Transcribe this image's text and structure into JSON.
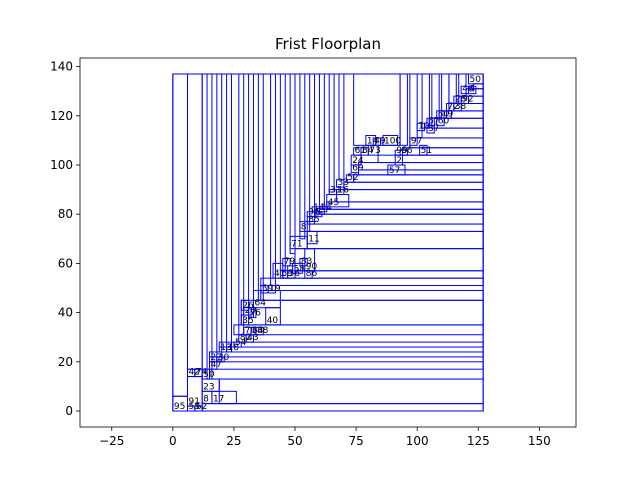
{
  "chart_data": {
    "type": "floorplan",
    "title": "Frist Floorplan",
    "xlim": [
      -38,
      165
    ],
    "ylim": [
      -6.5,
      143.5
    ],
    "xticks": [
      -25,
      0,
      25,
      50,
      75,
      100,
      125,
      150
    ],
    "yticks": [
      0,
      20,
      40,
      60,
      80,
      100,
      120,
      140
    ],
    "grid": false,
    "color": "#0000ff",
    "rooms": [
      {
        "label": "",
        "x": 0,
        "y": 0,
        "w": 127,
        "h": 137
      },
      {
        "label": "95",
        "x": 0,
        "y": 0,
        "w": 6,
        "h": 6
      },
      {
        "label": "",
        "x": 0,
        "y": 6,
        "w": 6,
        "h": 131
      },
      {
        "label": "55",
        "x": 6,
        "y": 0,
        "w": 3,
        "h": 2
      },
      {
        "label": "62",
        "x": 9,
        "y": 0,
        "w": 3,
        "h": 2
      },
      {
        "label": "91",
        "x": 6,
        "y": 2,
        "w": 6,
        "h": 12
      },
      {
        "label": "42",
        "x": 6,
        "y": 14,
        "w": 3,
        "h": 3
      },
      {
        "label": "74",
        "x": 9,
        "y": 14,
        "w": 3,
        "h": 3
      },
      {
        "label": "",
        "x": 6,
        "y": 17,
        "w": 6,
        "h": 120
      },
      {
        "label": "",
        "x": 12,
        "y": 0,
        "w": 115,
        "h": 3
      },
      {
        "label": "8",
        "x": 12,
        "y": 3,
        "w": 4,
        "h": 5
      },
      {
        "label": "17",
        "x": 16,
        "y": 3,
        "w": 10,
        "h": 5
      },
      {
        "label": "23",
        "x": 12,
        "y": 8,
        "w": 7,
        "h": 5
      },
      {
        "label": "",
        "x": 12,
        "y": 13,
        "w": 115,
        "h": 124
      },
      {
        "label": "50",
        "x": 12,
        "y": 13,
        "w": 3,
        "h": 4
      },
      {
        "label": "",
        "x": 19,
        "y": 3,
        "w": 108,
        "h": 10
      },
      {
        "label": "",
        "x": 15,
        "y": 17,
        "w": 112,
        "h": 3
      },
      {
        "label": "47",
        "x": 15,
        "y": 17,
        "w": 3,
        "h": 3
      },
      {
        "label": "27",
        "x": 15,
        "y": 20,
        "w": 3,
        "h": 2
      },
      {
        "label": "30",
        "x": 18,
        "y": 20,
        "w": 3,
        "h": 2
      },
      {
        "label": "",
        "x": 15,
        "y": 22,
        "w": 112,
        "h": 2
      },
      {
        "label": "13",
        "x": 19,
        "y": 24,
        "w": 3,
        "h": 2
      },
      {
        "label": "18",
        "x": 22,
        "y": 24,
        "w": 2,
        "h": 2
      },
      {
        "label": "",
        "x": 19,
        "y": 26,
        "w": 108,
        "h": 2
      },
      {
        "label": "54",
        "x": 25,
        "y": 26,
        "w": 3,
        "h": 2
      },
      {
        "label": "82",
        "x": 27,
        "y": 28,
        "w": 3,
        "h": 3
      },
      {
        "label": "43",
        "x": 30,
        "y": 28,
        "w": 3,
        "h": 3
      },
      {
        "label": "",
        "x": 25,
        "y": 31,
        "w": 102,
        "h": 4
      },
      {
        "label": "70",
        "x": 29,
        "y": 31,
        "w": 3,
        "h": 3
      },
      {
        "label": "64",
        "x": 32,
        "y": 31,
        "w": 2,
        "h": 3
      },
      {
        "label": "88",
        "x": 34,
        "y": 31,
        "w": 3,
        "h": 3
      },
      {
        "label": "",
        "x": 28,
        "y": 35,
        "w": 99,
        "h": 10
      },
      {
        "label": "35",
        "x": 28,
        "y": 35,
        "w": 3,
        "h": 4
      },
      {
        "label": "20",
        "x": 29,
        "y": 39,
        "w": 3,
        "h": 3
      },
      {
        "label": "76",
        "x": 31,
        "y": 38,
        "w": 3,
        "h": 4
      },
      {
        "label": "40",
        "x": 38,
        "y": 35,
        "w": 6,
        "h": 7
      },
      {
        "label": "26",
        "x": 28,
        "y": 41,
        "w": 3,
        "h": 4
      },
      {
        "label": "64",
        "x": 33,
        "y": 42,
        "w": 11,
        "h": 7
      },
      {
        "label": "",
        "x": 36,
        "y": 45,
        "w": 91,
        "h": 4
      },
      {
        "label": "59",
        "x": 36,
        "y": 48,
        "w": 3,
        "h": 3
      },
      {
        "label": "19",
        "x": 39,
        "y": 48,
        "w": 3,
        "h": 3
      },
      {
        "label": "",
        "x": 36,
        "y": 51,
        "w": 91,
        "h": 3
      },
      {
        "label": "41",
        "x": 41,
        "y": 54,
        "w": 4,
        "h": 6
      },
      {
        "label": "69",
        "x": 44,
        "y": 54,
        "w": 3,
        "h": 3
      },
      {
        "label": "56",
        "x": 47,
        "y": 54,
        "w": 3,
        "h": 5
      },
      {
        "label": "86",
        "x": 54,
        "y": 54,
        "w": 3,
        "h": 3
      },
      {
        "label": "58",
        "x": 49,
        "y": 56,
        "w": 4,
        "h": 4
      },
      {
        "label": "79",
        "x": 45,
        "y": 59,
        "w": 3,
        "h": 3
      },
      {
        "label": "83",
        "x": 52,
        "y": 59,
        "w": 3,
        "h": 3
      },
      {
        "label": "",
        "x": 45,
        "y": 54,
        "w": 82,
        "h": 3
      },
      {
        "label": "90",
        "x": 54,
        "y": 57,
        "w": 4,
        "h": 9
      },
      {
        "label": "",
        "x": 50,
        "y": 57,
        "w": 77,
        "h": 9
      },
      {
        "label": "71",
        "x": 48,
        "y": 66,
        "w": 7,
        "h": 5
      },
      {
        "label": "11",
        "x": 55,
        "y": 68,
        "w": 4,
        "h": 5
      },
      {
        "label": "",
        "x": 55,
        "y": 66,
        "w": 72,
        "h": 7
      },
      {
        "label": "8",
        "x": 52,
        "y": 73,
        "w": 4,
        "h": 4
      },
      {
        "label": "",
        "x": 55,
        "y": 73,
        "w": 72,
        "h": 3
      },
      {
        "label": "85",
        "x": 55,
        "y": 76,
        "w": 3,
        "h": 3
      },
      {
        "label": "96",
        "x": 55,
        "y": 79,
        "w": 3,
        "h": 2
      },
      {
        "label": "81",
        "x": 58,
        "y": 79,
        "w": 3,
        "h": 2
      },
      {
        "label": "",
        "x": 58,
        "y": 76,
        "w": 69,
        "h": 4
      },
      {
        "label": "14",
        "x": 57,
        "y": 81,
        "w": 3,
        "h": 2
      },
      {
        "label": "34",
        "x": 60,
        "y": 81,
        "w": 3,
        "h": 2
      },
      {
        "label": "",
        "x": 60,
        "y": 80,
        "w": 67,
        "h": 2
      },
      {
        "label": "45",
        "x": 63,
        "y": 83,
        "w": 9,
        "h": 5
      },
      {
        "label": "",
        "x": 63,
        "y": 82,
        "w": 64,
        "h": 3
      },
      {
        "label": "31",
        "x": 64,
        "y": 88,
        "w": 3,
        "h": 2
      },
      {
        "label": "16",
        "x": 67,
        "y": 88,
        "w": 3,
        "h": 2
      },
      {
        "label": "",
        "x": 67,
        "y": 85,
        "w": 60,
        "h": 5
      },
      {
        "label": "33",
        "x": 67,
        "y": 91,
        "w": 3,
        "h": 3
      },
      {
        "label": "",
        "x": 70,
        "y": 90,
        "w": 57,
        "h": 3
      },
      {
        "label": "52",
        "x": 71,
        "y": 93,
        "w": 3,
        "h": 3
      },
      {
        "label": "",
        "x": 74,
        "y": 93,
        "w": 53,
        "h": 3
      },
      {
        "label": "69",
        "x": 73,
        "y": 97,
        "w": 3,
        "h": 3
      },
      {
        "label": "24",
        "x": 73,
        "y": 100,
        "w": 4,
        "h": 4
      },
      {
        "label": "57",
        "x": 88,
        "y": 96,
        "w": 7,
        "h": 4
      },
      {
        "label": "",
        "x": 76,
        "y": 96,
        "w": 51,
        "h": 2
      },
      {
        "label": "2",
        "x": 91,
        "y": 100,
        "w": 3,
        "h": 4
      },
      {
        "label": "",
        "x": 76,
        "y": 98,
        "w": 51,
        "h": 3
      },
      {
        "label": "61",
        "x": 74,
        "y": 104,
        "w": 3,
        "h": 3
      },
      {
        "label": "84",
        "x": 77,
        "y": 104,
        "w": 3,
        "h": 3
      },
      {
        "label": "73",
        "x": 80,
        "y": 104,
        "w": 4,
        "h": 4
      },
      {
        "label": "",
        "x": 84,
        "y": 101,
        "w": 43,
        "h": 3
      },
      {
        "label": "99",
        "x": 91,
        "y": 104,
        "w": 3,
        "h": 2
      },
      {
        "label": "66",
        "x": 93,
        "y": 104,
        "w": 3,
        "h": 2
      },
      {
        "label": "51",
        "x": 101,
        "y": 104,
        "w": 3,
        "h": 4
      },
      {
        "label": "",
        "x": 94,
        "y": 104,
        "w": 33,
        "h": 3
      },
      {
        "label": "14",
        "x": 79,
        "y": 108,
        "w": 4,
        "h": 4
      },
      {
        "label": "49",
        "x": 82,
        "y": 108,
        "w": 3,
        "h": 3
      },
      {
        "label": "100",
        "x": 86,
        "y": 108,
        "w": 6,
        "h": 4
      },
      {
        "label": "",
        "x": 74,
        "y": 108,
        "w": 19,
        "h": 29
      },
      {
        "label": "97",
        "x": 97,
        "y": 108,
        "w": 3,
        "h": 3
      },
      {
        "label": "",
        "x": 97,
        "y": 107,
        "w": 30,
        "h": 4
      },
      {
        "label": "10",
        "x": 100,
        "y": 114,
        "w": 3,
        "h": 3
      },
      {
        "label": "37",
        "x": 104,
        "y": 113,
        "w": 3,
        "h": 3
      },
      {
        "label": "",
        "x": 102,
        "y": 111,
        "w": 25,
        "h": 4
      },
      {
        "label": "67",
        "x": 104,
        "y": 116,
        "w": 3,
        "h": 3
      },
      {
        "label": "60",
        "x": 108,
        "y": 116,
        "w": 3,
        "h": 3
      },
      {
        "label": "",
        "x": 106,
        "y": 115,
        "w": 21,
        "h": 4
      },
      {
        "label": "80",
        "x": 108,
        "y": 119,
        "w": 3,
        "h": 3
      },
      {
        "label": "9",
        "x": 112,
        "y": 119,
        "w": 2,
        "h": 3
      },
      {
        "label": "",
        "x": 110,
        "y": 119,
        "w": 17,
        "h": 3
      },
      {
        "label": "72",
        "x": 112,
        "y": 122,
        "w": 3,
        "h": 3
      },
      {
        "label": "38",
        "x": 115,
        "y": 122,
        "w": 3,
        "h": 3
      },
      {
        "label": "",
        "x": 113,
        "y": 122,
        "w": 14,
        "h": 3
      },
      {
        "label": "28",
        "x": 115,
        "y": 125,
        "w": 3,
        "h": 3
      },
      {
        "label": "92",
        "x": 118,
        "y": 125,
        "w": 3,
        "h": 3
      },
      {
        "label": "",
        "x": 117,
        "y": 125,
        "w": 10,
        "h": 3
      },
      {
        "label": "46",
        "x": 118,
        "y": 129,
        "w": 3,
        "h": 3
      },
      {
        "label": "4",
        "x": 121,
        "y": 129,
        "w": 3,
        "h": 3
      },
      {
        "label": "",
        "x": 120,
        "y": 128,
        "w": 7,
        "h": 3
      },
      {
        "label": "50",
        "x": 121,
        "y": 133,
        "w": 6,
        "h": 4
      },
      {
        "label": "",
        "x": 123,
        "y": 131,
        "w": 4,
        "h": 2
      },
      {
        "label": "",
        "x": 14,
        "y": 13,
        "w": 2,
        "h": 124
      },
      {
        "label": "",
        "x": 18,
        "y": 20,
        "w": 2,
        "h": 117
      },
      {
        "label": "",
        "x": 22,
        "y": 26,
        "w": 2,
        "h": 111
      },
      {
        "label": "",
        "x": 27,
        "y": 31,
        "w": 2,
        "h": 106
      },
      {
        "label": "",
        "x": 31,
        "y": 38,
        "w": 2,
        "h": 99
      },
      {
        "label": "",
        "x": 35,
        "y": 45,
        "w": 2,
        "h": 92
      },
      {
        "label": "",
        "x": 40,
        "y": 51,
        "w": 2,
        "h": 86
      },
      {
        "label": "",
        "x": 44,
        "y": 57,
        "w": 2,
        "h": 80
      },
      {
        "label": "",
        "x": 48,
        "y": 64,
        "w": 2,
        "h": 73
      },
      {
        "label": "",
        "x": 52,
        "y": 70,
        "w": 2,
        "h": 67
      },
      {
        "label": "",
        "x": 56,
        "y": 77,
        "w": 2,
        "h": 60
      },
      {
        "label": "",
        "x": 60,
        "y": 83,
        "w": 2,
        "h": 54
      },
      {
        "label": "",
        "x": 64,
        "y": 89,
        "w": 2,
        "h": 48
      },
      {
        "label": "",
        "x": 68,
        "y": 94,
        "w": 2,
        "h": 43
      },
      {
        "label": "",
        "x": 93,
        "y": 108,
        "w": 3,
        "h": 29
      },
      {
        "label": "",
        "x": 97,
        "y": 111,
        "w": 3,
        "h": 26
      },
      {
        "label": "",
        "x": 102,
        "y": 115,
        "w": 3,
        "h": 22
      },
      {
        "label": "",
        "x": 106,
        "y": 119,
        "w": 3,
        "h": 18
      },
      {
        "label": "",
        "x": 110,
        "y": 122,
        "w": 3,
        "h": 15
      },
      {
        "label": "",
        "x": 113,
        "y": 125,
        "w": 3,
        "h": 12
      },
      {
        "label": "",
        "x": 117,
        "y": 128,
        "w": 3,
        "h": 9
      }
    ]
  }
}
